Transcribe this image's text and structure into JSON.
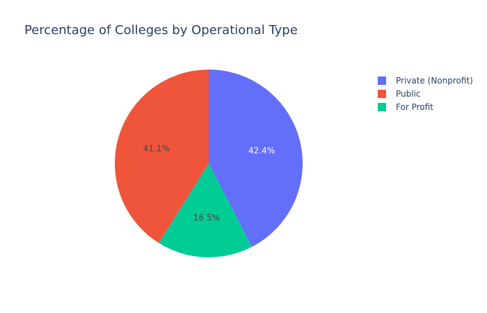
{
  "chart_data": {
    "type": "pie",
    "title": "Percentage of Colleges by Operational Type",
    "slices": [
      {
        "label": "Private (Nonprofit)",
        "value": 42.4,
        "text": "42.4%",
        "color": "#636efa",
        "text_color": "#ffffff"
      },
      {
        "label": "For Profit",
        "value": 16.5,
        "text": "16.5%",
        "color": "#00cc96",
        "text_color": "#444444"
      },
      {
        "label": "Public",
        "value": 41.1,
        "text": "41.1%",
        "color": "#ef553b",
        "text_color": "#444444"
      }
    ],
    "legend": {
      "placement": "top-right",
      "items": [
        {
          "label": "Private (Nonprofit)",
          "color": "#636efa"
        },
        {
          "label": "Public",
          "color": "#ef553b"
        },
        {
          "label": "For Profit",
          "color": "#00cc96"
        }
      ]
    },
    "direction": "clockwise",
    "start": "top"
  }
}
